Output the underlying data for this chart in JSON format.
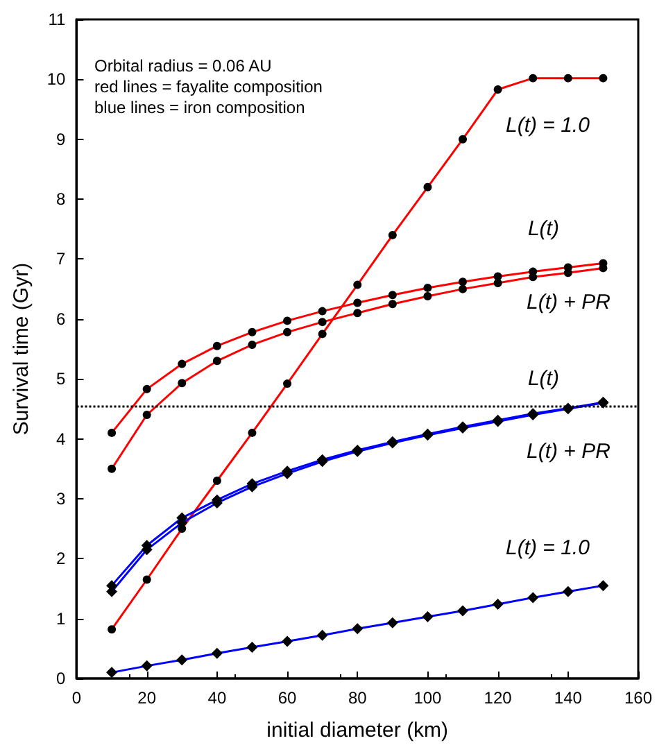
{
  "chart_data": {
    "type": "line",
    "xlabel": "initial diameter (km)",
    "ylabel": "Survival time (Gyr)",
    "x": [
      10,
      20,
      30,
      40,
      50,
      60,
      70,
      80,
      90,
      100,
      110,
      120,
      130,
      140,
      150
    ],
    "xlim": [
      0,
      160
    ],
    "xticks": [
      0,
      20,
      40,
      60,
      80,
      100,
      120,
      140,
      160
    ],
    "ylim": [
      0,
      11
    ],
    "yticks": [
      0,
      1,
      2,
      3,
      4,
      5,
      6,
      7,
      8,
      9,
      10,
      11
    ],
    "grid": false,
    "line_style": "solid",
    "series": [
      {
        "name": "L(t) = 1.0",
        "color": "#ff0000",
        "marker": "circle",
        "values": [
          0.82,
          1.65,
          2.5,
          3.3,
          4.1,
          4.92,
          5.75,
          6.57,
          7.4,
          8.2,
          9.0,
          9.83,
          10.02,
          10.02,
          10.02
        ]
      },
      {
        "name": "L(t)",
        "color": "#ff0000",
        "marker": "circle",
        "values": [
          4.1,
          4.83,
          5.25,
          5.55,
          5.78,
          5.97,
          6.13,
          6.27,
          6.4,
          6.52,
          6.62,
          6.71,
          6.79,
          6.86,
          6.93
        ]
      },
      {
        "name": "L(t) + PR",
        "color": "#ff0000",
        "marker": "circle",
        "values": [
          3.5,
          4.4,
          4.93,
          5.3,
          5.57,
          5.78,
          5.95,
          6.1,
          6.25,
          6.38,
          6.5,
          6.6,
          6.7,
          6.77,
          6.85
        ]
      },
      {
        "name": "L(t)",
        "color": "#0000ff",
        "marker": "diamond",
        "values": [
          1.55,
          2.22,
          2.68,
          2.98,
          3.25,
          3.46,
          3.65,
          3.81,
          3.95,
          4.08,
          4.2,
          4.31,
          4.42,
          4.51,
          4.61
        ]
      },
      {
        "name": "L(t) + PR",
        "color": "#0000ff",
        "marker": "diamond",
        "values": [
          1.45,
          2.15,
          2.6,
          2.93,
          3.2,
          3.42,
          3.62,
          3.79,
          3.93,
          4.06,
          4.18,
          4.29,
          4.4,
          4.5,
          4.6
        ]
      },
      {
        "name": "L(t) = 1.0",
        "color": "#0000ff",
        "marker": "diamond",
        "values": [
          0.1,
          0.21,
          0.31,
          0.42,
          0.52,
          0.62,
          0.72,
          0.83,
          0.93,
          1.03,
          1.13,
          1.24,
          1.35,
          1.45,
          1.55
        ]
      }
    ],
    "ref_lines": [
      {
        "axis": "y",
        "value": 4.55,
        "color": "#000000",
        "line_style": "dotted"
      }
    ],
    "annotations": [
      "Orbital radius = 0.06 AU\nred lines = fayalite composition\nblue lines = iron composition"
    ]
  }
}
